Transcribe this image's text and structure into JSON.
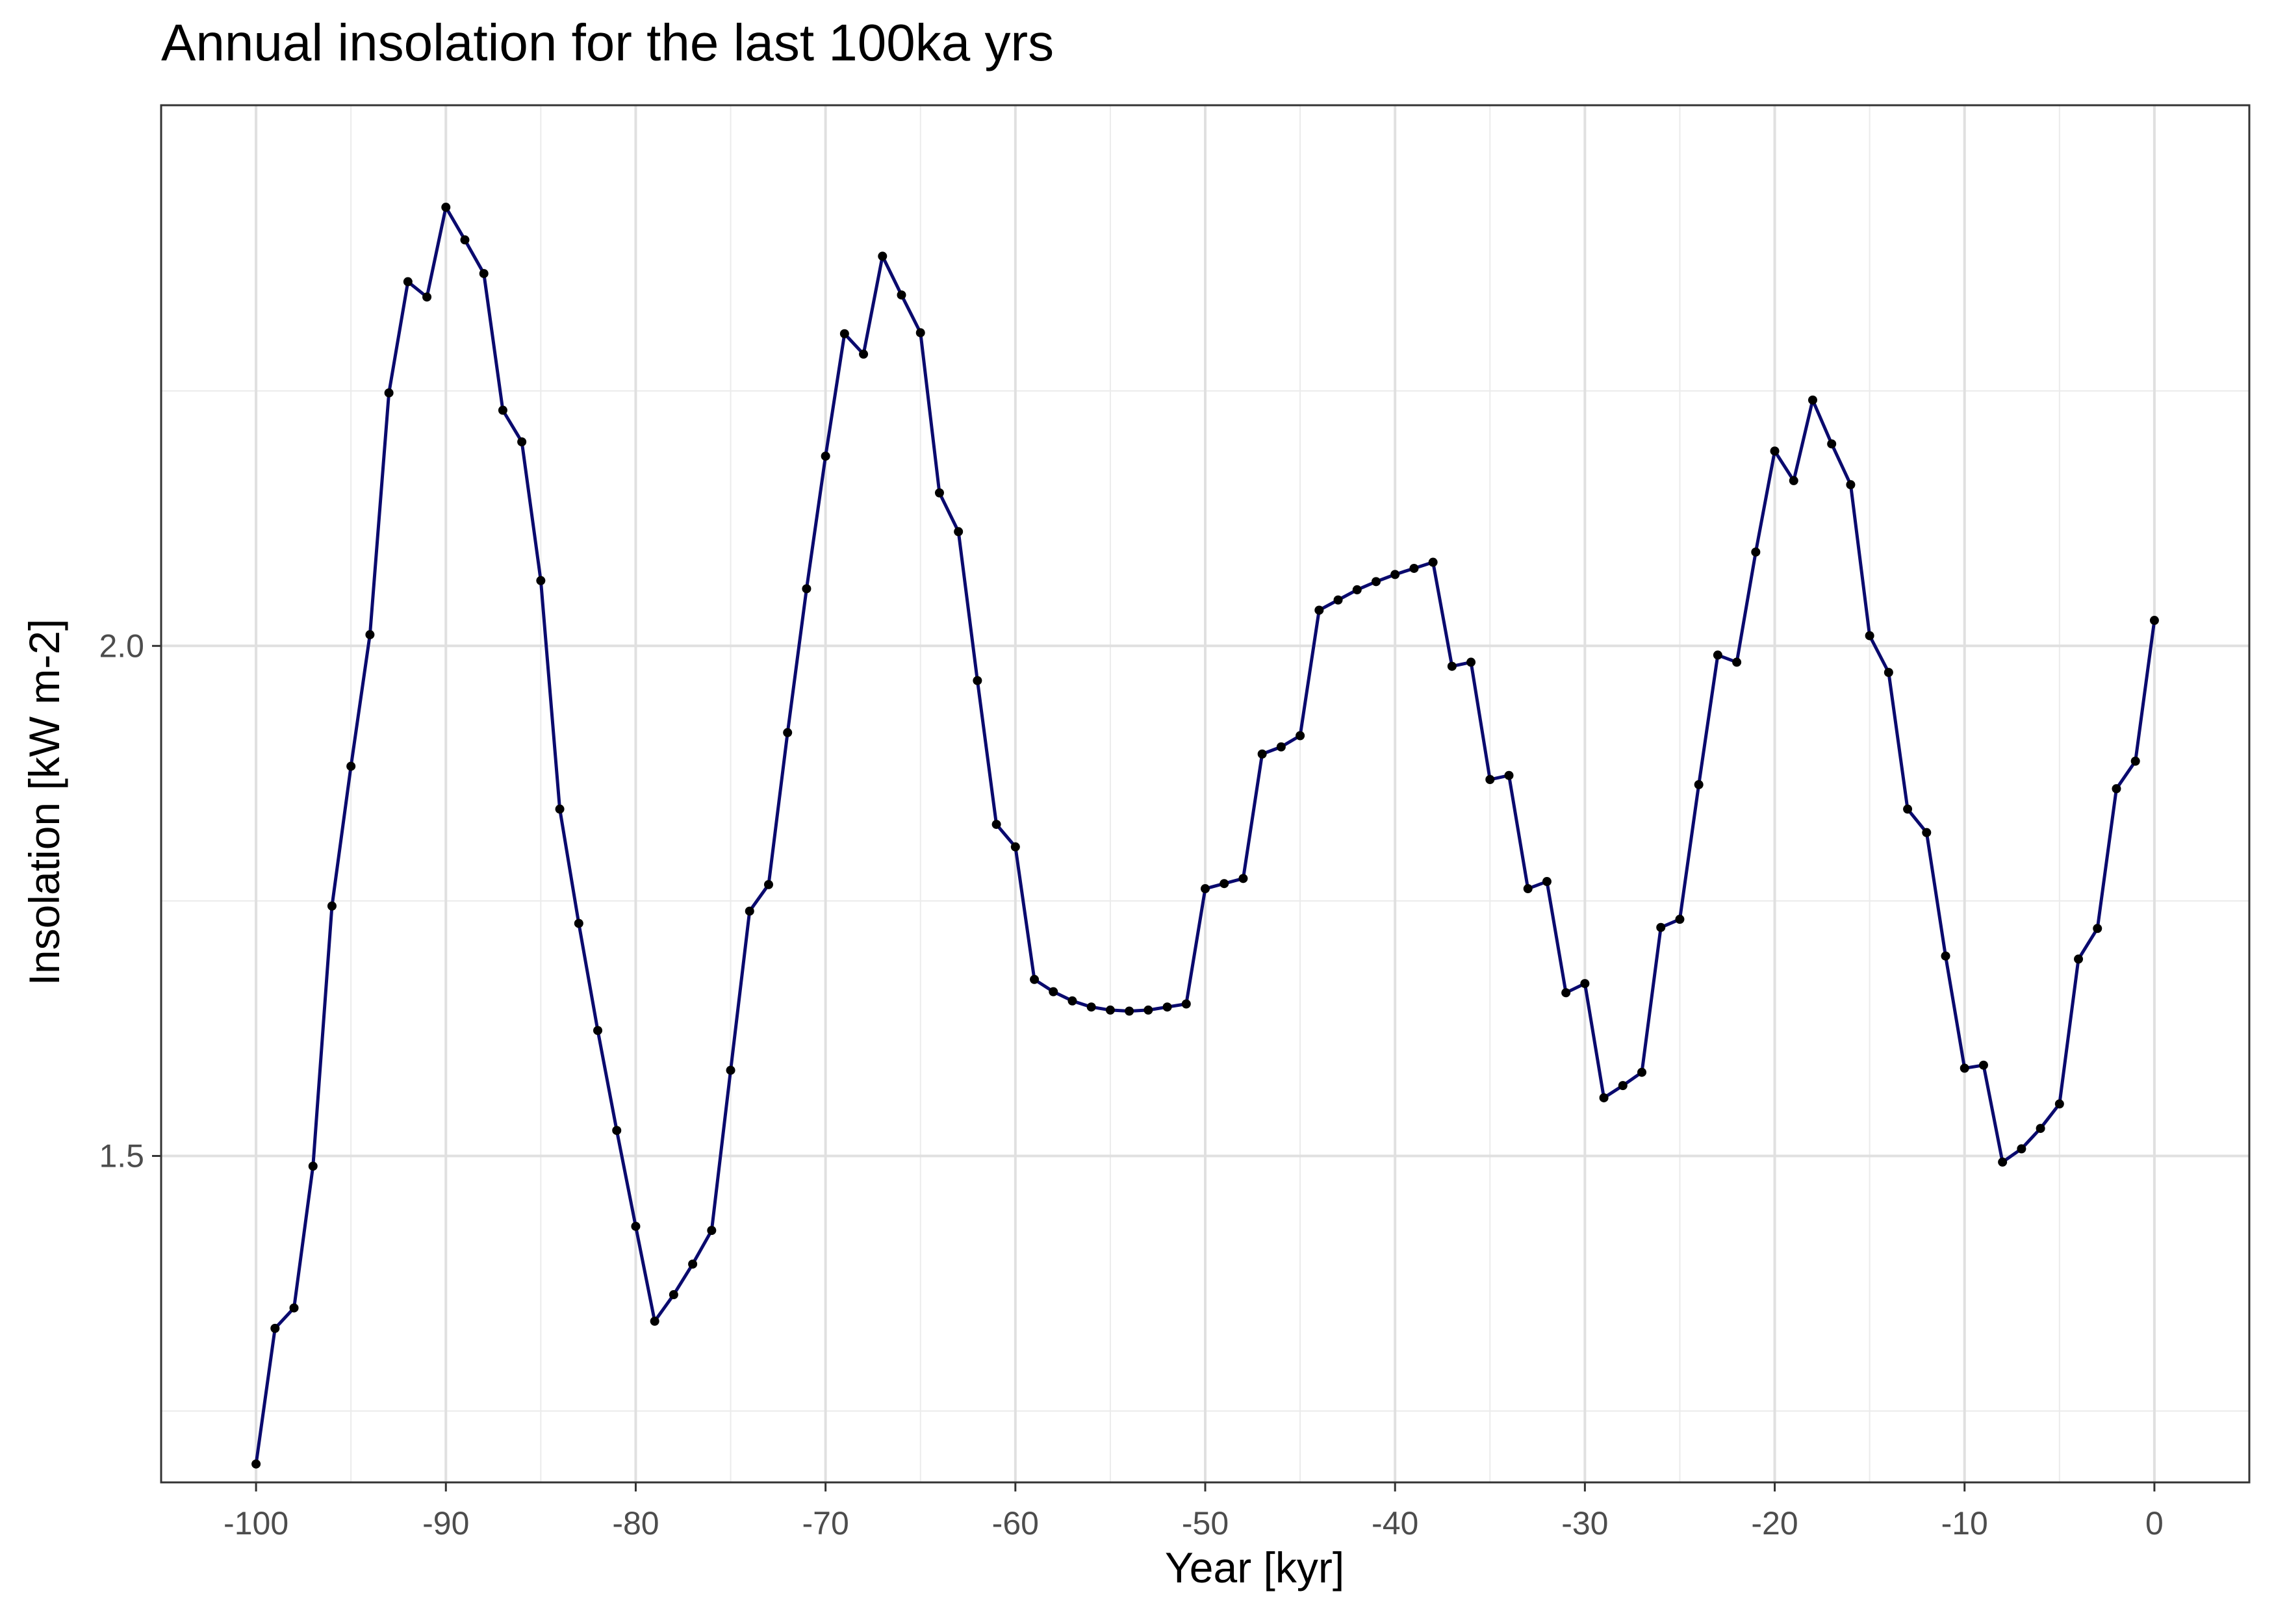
{
  "chart_data": {
    "type": "line",
    "title": "Annual insolation for the last 100ka yrs",
    "xlabel": "Year [kyr]",
    "ylabel": "Insolation [kW m-2]",
    "xlim": [
      -105,
      5
    ],
    "ylim": [
      1.18,
      2.53
    ],
    "x_ticks": [
      -100,
      -90,
      -80,
      -70,
      -60,
      -50,
      -40,
      -30,
      -20,
      -10,
      0
    ],
    "x_tick_labels": [
      "-100",
      "-90",
      "-80",
      "-70",
      "-60",
      "-50",
      "-40",
      "-30",
      "-20",
      "-10",
      "0"
    ],
    "y_ticks": [
      1.5,
      2.0
    ],
    "y_tick_labels": [
      "1.5",
      "2.0"
    ],
    "grid": true,
    "line_color": "#0a0a6e",
    "series": [
      {
        "x": [
          -100,
          -99,
          -98,
          -97,
          -96,
          -95,
          -94,
          -93,
          -92,
          -91,
          -90,
          -89,
          -88,
          -87,
          -86,
          -85,
          -84,
          -83,
          -82,
          -81,
          -80,
          -79,
          -78,
          -77,
          -76,
          -75,
          -74,
          -73,
          -72,
          -71,
          -70,
          -69,
          -68,
          -67,
          -66,
          -65,
          -64,
          -63,
          -62,
          -61,
          -60,
          -59,
          -58,
          -57,
          -56,
          -55,
          -54,
          -53,
          -52,
          -51,
          -50,
          -49,
          -48,
          -47,
          -46,
          -45,
          -44,
          -43,
          -42,
          -41,
          -40,
          -39,
          -38,
          -37,
          -36,
          -35,
          -34,
          -33,
          -32,
          -31,
          -30,
          -29,
          -28,
          -27,
          -26,
          -25,
          -24,
          -23,
          -22,
          -21,
          -20,
          -19,
          -18,
          -17,
          -16,
          -15,
          -14,
          -13,
          -12,
          -11,
          -10,
          -9,
          -8,
          -7,
          -6,
          -5,
          -4,
          -3,
          -2,
          -1,
          0
        ],
        "values": [
          1.198,
          1.331,
          1.351,
          1.49,
          1.745,
          1.882,
          2.011,
          2.248,
          2.357,
          2.342,
          2.43,
          2.398,
          2.365,
          2.231,
          2.2,
          2.064,
          1.84,
          1.728,
          1.623,
          1.525,
          1.431,
          1.338,
          1.364,
          1.394,
          1.427,
          1.584,
          1.74,
          1.766,
          1.915,
          2.056,
          2.186,
          2.306,
          2.286,
          2.382,
          2.344,
          2.307,
          2.15,
          2.112,
          1.966,
          1.825,
          1.803,
          1.673,
          1.661,
          1.652,
          1.646,
          1.643,
          1.642,
          1.643,
          1.646,
          1.649,
          1.762,
          1.767,
          1.772,
          1.894,
          1.901,
          1.912,
          2.035,
          2.045,
          2.055,
          2.063,
          2.07,
          2.076,
          2.082,
          1.98,
          1.984,
          1.869,
          1.873,
          1.762,
          1.769,
          1.66,
          1.669,
          1.557,
          1.569,
          1.582,
          1.724,
          1.732,
          1.864,
          1.991,
          1.984,
          2.092,
          2.191,
          2.162,
          2.241,
          2.198,
          2.158,
          2.01,
          1.974,
          1.84,
          1.817,
          1.696,
          1.586,
          1.589,
          1.494,
          1.507,
          1.527,
          1.551,
          1.693,
          1.723,
          1.86,
          1.887,
          2.025
        ]
      }
    ]
  }
}
